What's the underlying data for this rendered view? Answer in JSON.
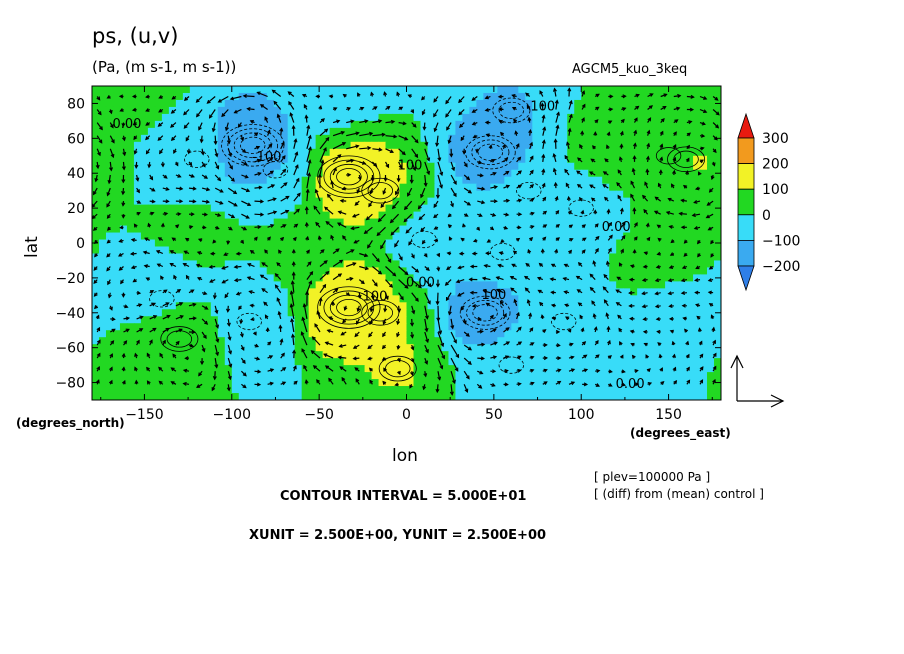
{
  "header": {
    "title": "ps, (u,v)",
    "units": "(Pa, (m s-1, m s-1))",
    "run_name": "AGCM5_kuo_3keq"
  },
  "footer": {
    "contour_interval": "CONTOUR INTERVAL = 5.000E+01",
    "vector_units": "XUNIT = 2.500E+00, YUNIT = 2.500E+00",
    "plev": "[ plev=100000 Pa ]",
    "diff": "[ (diff) from (mean) control ]"
  },
  "colors": {
    "lt_neg200": "#2f7fe8",
    "neg200_neg100": "#3aaaf0",
    "neg100_0": "#38dcf8",
    "0_100": "#22d822",
    "100_200": "#f2f226",
    "200_300": "#f29a1e",
    "gt_300": "#e81a10"
  },
  "chart_data": {
    "type": "heatmap",
    "xlabel": "lon",
    "ylabel": "lat",
    "x_units": "(degrees_east)",
    "y_units": "(degrees_north)",
    "xlim": [
      -180,
      180
    ],
    "ylim": [
      -90,
      90
    ],
    "x_ticks": [
      -150,
      -100,
      -50,
      0,
      50,
      100,
      150
    ],
    "x_tick_labels": [
      "−150",
      "−100",
      "−50",
      "0",
      "50",
      "100",
      "150"
    ],
    "y_ticks": [
      80,
      60,
      40,
      20,
      0,
      -20,
      -40,
      -60,
      -80
    ],
    "y_tick_labels": [
      "80",
      "60",
      "40",
      "20",
      "0",
      "−20",
      "−40",
      "−60",
      "−80"
    ],
    "colorbar": {
      "levels": [
        -200,
        -100,
        0,
        100,
        200,
        300
      ],
      "labels": [
        "300",
        "200",
        "100",
        "0",
        "−100",
        "−200"
      ]
    },
    "contour_labels": [
      {
        "text": "0.00",
        "lon": -160,
        "lat": 66
      },
      {
        "text": "100",
        "lon": 78,
        "lat": 76
      },
      {
        "text": "-100",
        "lon": -80,
        "lat": 47
      },
      {
        "text": "100",
        "lon": 2,
        "lat": 42
      },
      {
        "text": "0.00",
        "lon": 120,
        "lat": 7
      },
      {
        "text": "0.00",
        "lon": 8,
        "lat": -25
      },
      {
        "text": "100",
        "lon": 50,
        "lat": -32
      },
      {
        "text": "100",
        "lon": -18,
        "lat": -33
      },
      {
        "text": "0.00",
        "lon": 128,
        "lat": -83
      }
    ],
    "fields": [
      {
        "lon": -150,
        "lat": 82,
        "value": 10
      },
      {
        "lon": -40,
        "lat": 76,
        "value": -40
      },
      {
        "lon": 60,
        "lat": 76,
        "value": -120
      },
      {
        "lon": -120,
        "lat": 48,
        "value": -60
      },
      {
        "lon": -88,
        "lat": 56,
        "value": -220
      },
      {
        "lon": -75,
        "lat": 42,
        "value": -80
      },
      {
        "lon": -33,
        "lat": 38,
        "value": 230
      },
      {
        "lon": -15,
        "lat": 30,
        "value": 120
      },
      {
        "lon": 48,
        "lat": 52,
        "value": -160
      },
      {
        "lon": 70,
        "lat": 30,
        "value": -80
      },
      {
        "lon": 100,
        "lat": 20,
        "value": -50
      },
      {
        "lon": 150,
        "lat": 50,
        "value": 60
      },
      {
        "lon": 160,
        "lat": 48,
        "value": 140
      },
      {
        "lon": 110,
        "lat": 52,
        "value": 40
      },
      {
        "lon": -120,
        "lat": 8,
        "value": 20
      },
      {
        "lon": -60,
        "lat": 0,
        "value": 30
      },
      {
        "lon": 10,
        "lat": 2,
        "value": -70
      },
      {
        "lon": 55,
        "lat": -5,
        "value": -60
      },
      {
        "lon": 140,
        "lat": -10,
        "value": 20
      },
      {
        "lon": -140,
        "lat": -32,
        "value": -60
      },
      {
        "lon": -90,
        "lat": -45,
        "value": -70
      },
      {
        "lon": -33,
        "lat": -37,
        "value": 230
      },
      {
        "lon": -15,
        "lat": -40,
        "value": 110
      },
      {
        "lon": 45,
        "lat": -40,
        "value": -170
      },
      {
        "lon": 90,
        "lat": -45,
        "value": -80
      },
      {
        "lon": 150,
        "lat": -45,
        "value": -30
      },
      {
        "lon": -130,
        "lat": -55,
        "value": 120
      },
      {
        "lon": -5,
        "lat": -72,
        "value": 120
      },
      {
        "lon": 60,
        "lat": -70,
        "value": -60
      },
      {
        "lon": 130,
        "lat": -75,
        "value": -40
      },
      {
        "lon": -150,
        "lat": -80,
        "value": 30
      }
    ]
  }
}
